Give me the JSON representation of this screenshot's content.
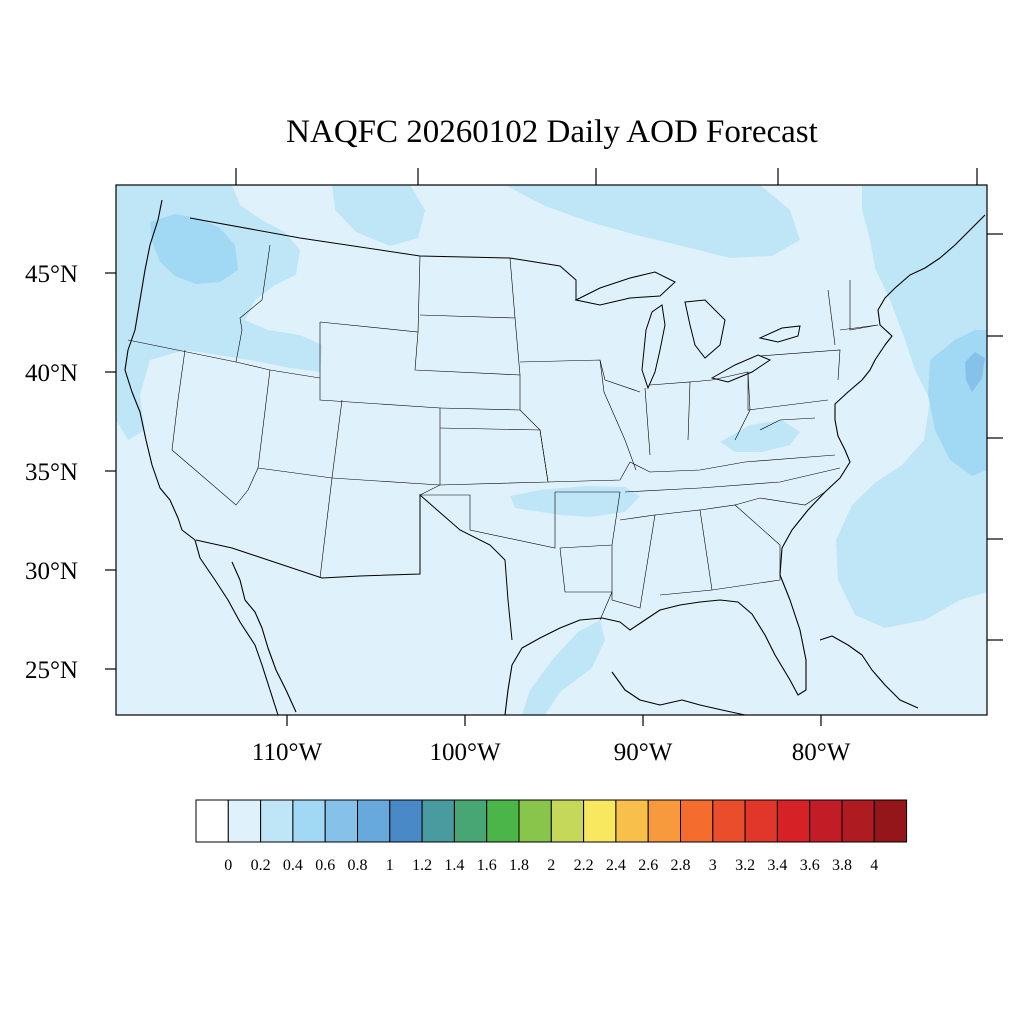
{
  "title": "NAQFC 20260102 Daily AOD Forecast",
  "axes": {
    "lat_labels": [
      "45°N",
      "40°N",
      "35°N",
      "30°N",
      "25°N"
    ],
    "lon_labels": [
      "110°W",
      "100°W",
      "90°W",
      "80°W"
    ]
  },
  "colorbar": {
    "colors": [
      "#ffffff",
      "#dff2fb",
      "#bfe6f7",
      "#a1d9f4",
      "#85c1e8",
      "#67a9dd",
      "#4a89c8",
      "#4a9b9f",
      "#48a574",
      "#4bb549",
      "#88c54a",
      "#c5d85a",
      "#f8e860",
      "#f8c04a",
      "#f79a3d",
      "#f56c2f",
      "#ea4d2c",
      "#e1372a",
      "#d62127",
      "#c21d27",
      "#ae1c22",
      "#94161b"
    ],
    "labels": [
      "0",
      "0.2",
      "0.4",
      "0.6",
      "0.8",
      "1",
      "1.2",
      "1.4",
      "1.6",
      "1.8",
      "2",
      "2.2",
      "2.4",
      "2.6",
      "2.8",
      "3",
      "3.2",
      "3.4",
      "3.6",
      "3.8",
      "4"
    ]
  },
  "map_colors": {
    "background": "#dff2fb",
    "level_04": "#bfe6f7",
    "level_06": "#a1d9f4",
    "outline": "#000000"
  }
}
